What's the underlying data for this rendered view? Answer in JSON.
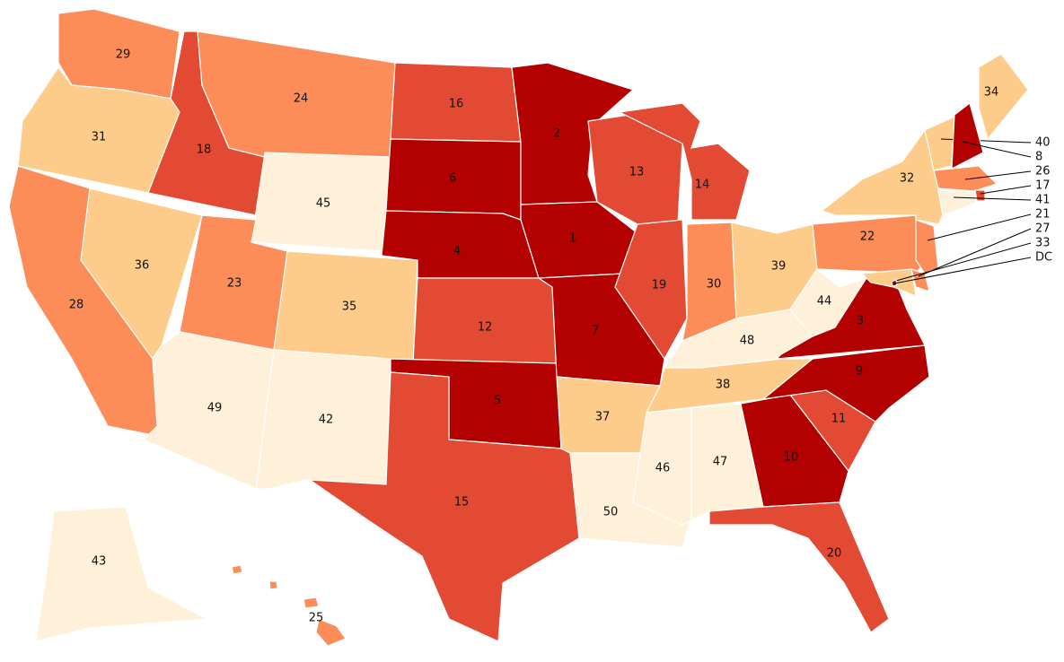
{
  "regions": [
    {
      "label": 29,
      "color": "#fc8d59"
    },
    {
      "label": 31,
      "color": "#fdcc8a"
    },
    {
      "label": 28,
      "color": "#fc8d59"
    },
    {
      "label": 36,
      "color": "#fdcc8a"
    },
    {
      "label": 18,
      "color": "#e34a33"
    },
    {
      "label": 24,
      "color": "#fc8d59"
    },
    {
      "label": 45,
      "color": "#fef0d9"
    },
    {
      "label": 23,
      "color": "#fc8d59"
    },
    {
      "label": 35,
      "color": "#fdcc8a"
    },
    {
      "label": 49,
      "color": "#fef0d9"
    },
    {
      "label": 42,
      "color": "#fef0d9"
    },
    {
      "label": 16,
      "color": "#e34a33"
    },
    {
      "label": 6,
      "color": "#b30000"
    },
    {
      "label": 4,
      "color": "#b30000"
    },
    {
      "label": 12,
      "color": "#e34a33"
    },
    {
      "label": 5,
      "color": "#b30000"
    },
    {
      "label": 15,
      "color": "#e34a33"
    },
    {
      "label": 2,
      "color": "#b30000"
    },
    {
      "label": 1,
      "color": "#b30000"
    },
    {
      "label": 7,
      "color": "#b30000"
    },
    {
      "label": 37,
      "color": "#fdcc8a"
    },
    {
      "label": 50,
      "color": "#fef0d9"
    },
    {
      "label": 13,
      "color": "#e34a33"
    },
    {
      "label": 19,
      "color": "#e34a33"
    },
    {
      "label": 14,
      "color": "#e34a33"
    },
    {
      "label": 30,
      "color": "#fc8d59"
    },
    {
      "label": 39,
      "color": "#fdcc8a"
    },
    {
      "label": 48,
      "color": "#fef0d9"
    },
    {
      "label": 38,
      "color": "#fdcc8a"
    },
    {
      "label": 46,
      "color": "#fef0d9"
    },
    {
      "label": 47,
      "color": "#fef0d9"
    },
    {
      "label": 10,
      "color": "#b30000"
    },
    {
      "label": 20,
      "color": "#e34a33"
    },
    {
      "label": 11,
      "color": "#e34a33"
    },
    {
      "label": 9,
      "color": "#b30000"
    },
    {
      "label": 3,
      "color": "#b30000"
    },
    {
      "label": 44,
      "color": "#fef0d9"
    },
    {
      "label": 22,
      "color": "#fc8d59"
    },
    {
      "label": 32,
      "color": "#fdcc8a"
    },
    {
      "label": 34,
      "color": "#fdcc8a"
    },
    {
      "label": 40,
      "color": "#fdcc8a"
    },
    {
      "label": 8,
      "color": "#b30000"
    },
    {
      "label": 26,
      "color": "#fc8d59"
    },
    {
      "label": 17,
      "color": "#e34a33"
    },
    {
      "label": 41,
      "color": "#fef0d9"
    },
    {
      "label": 21,
      "color": "#fc8d59"
    },
    {
      "label": 27,
      "color": "#fc8d59"
    },
    {
      "label": 33,
      "color": "#fdcc8a"
    },
    {
      "label": "DC",
      "color": "#b30000"
    },
    {
      "label": 43,
      "color": "#fef0d9"
    },
    {
      "label": 25,
      "color": "#fc8d59"
    }
  ]
}
